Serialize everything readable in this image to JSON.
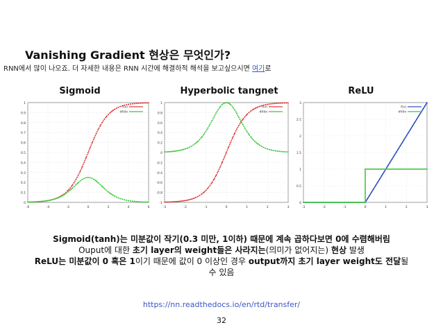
{
  "slide": {
    "title": "Vanishing Gradient 현상은 무엇인가?",
    "intro_text": "RNN에서 많이 나오죠. 더 자세한 내용은 RNN 시간에 해결하적 해석을 보고싶으시면 ",
    "intro_link": "여기",
    "intro_suffix": "로",
    "panels": [
      {
        "title": "Sigmoid"
      },
      {
        "title": "Hyperbolic tangnet"
      },
      {
        "title": "ReLU"
      }
    ],
    "summary": {
      "line1": "Sigmoid(tanh)는 미분값이 작기(0.3 미만, 1이하) 때문에 계속 곱하다보면 0에 수렴해버림",
      "line2_a": "Ouput에 대한 ",
      "line2_b": "초기 layer의 weight들은 사라지는",
      "line2_c": "(의미가 없어지는) ",
      "line2_d": "현상",
      "line2_e": " 발생",
      "line3_a": "ReLU는 미분값이 0 혹은 1",
      "line3_b": "이기 때문에 값이 0 이상인 경우 ",
      "line3_c": "output까지 초기 layer weight도 전달",
      "line3_d": "될",
      "line4": "수 있음"
    },
    "link": "https://nn.readthedocs.io/en/rtd/transfer/",
    "page_number": "32"
  },
  "chart_data": [
    {
      "type": "line",
      "title": "Sigmoid",
      "x_ticks": [
        "-6",
        "-4",
        "-2",
        "0",
        "2",
        "4",
        "6"
      ],
      "y_ticks": [
        "0",
        "0.1",
        "0.2",
        "0.3",
        "0.4",
        "0.5",
        "0.6",
        "0.7",
        "0.8",
        "0.9",
        "1"
      ],
      "xlim": [
        -6,
        6
      ],
      "ylim": [
        0,
        1
      ],
      "legend": [
        "f(x)",
        "df/dx"
      ],
      "legend_position": "top-right",
      "grid": true,
      "series": [
        {
          "name": "f(x)",
          "color": "#e03a3a",
          "fn": "sigmoid"
        },
        {
          "name": "df/dx",
          "color": "#3cc83c",
          "fn": "sigmoid_deriv"
        }
      ]
    },
    {
      "type": "line",
      "title": "Hyperbolic tangnet",
      "x_ticks": [
        "-3",
        "-2",
        "-1",
        "0",
        "1",
        "2",
        "3"
      ],
      "y_ticks": [
        "-1",
        "-0.8",
        "-0.6",
        "-0.4",
        "-0.2",
        "0",
        "0.2",
        "0.4",
        "0.6",
        "0.8",
        "1"
      ],
      "xlim": [
        -3,
        3
      ],
      "ylim": [
        -1,
        1
      ],
      "legend": [
        "f(x)",
        "df/dx"
      ],
      "legend_position": "top-right",
      "grid": true,
      "series": [
        {
          "name": "f(x)",
          "color": "#e03a3a",
          "fn": "tanh"
        },
        {
          "name": "df/dx",
          "color": "#3cc83c",
          "fn": "tanh_deriv"
        }
      ]
    },
    {
      "type": "line",
      "title": "ReLU",
      "x_ticks": [
        "-3",
        "-2",
        "-1",
        "0",
        "1",
        "2",
        "3"
      ],
      "y_ticks": [
        "0",
        "0.5",
        "1",
        "1.5",
        "2",
        "2.5",
        "3"
      ],
      "xlim": [
        -3,
        3
      ],
      "ylim": [
        0,
        3
      ],
      "legend": [
        "f(x)",
        "df/dx"
      ],
      "legend_position": "top-right",
      "grid": true,
      "series": [
        {
          "name": "f(x)",
          "color": "#3050c0",
          "fn": "relu"
        },
        {
          "name": "df/dx",
          "color": "#3cc83c",
          "fn": "relu_deriv"
        }
      ]
    }
  ]
}
